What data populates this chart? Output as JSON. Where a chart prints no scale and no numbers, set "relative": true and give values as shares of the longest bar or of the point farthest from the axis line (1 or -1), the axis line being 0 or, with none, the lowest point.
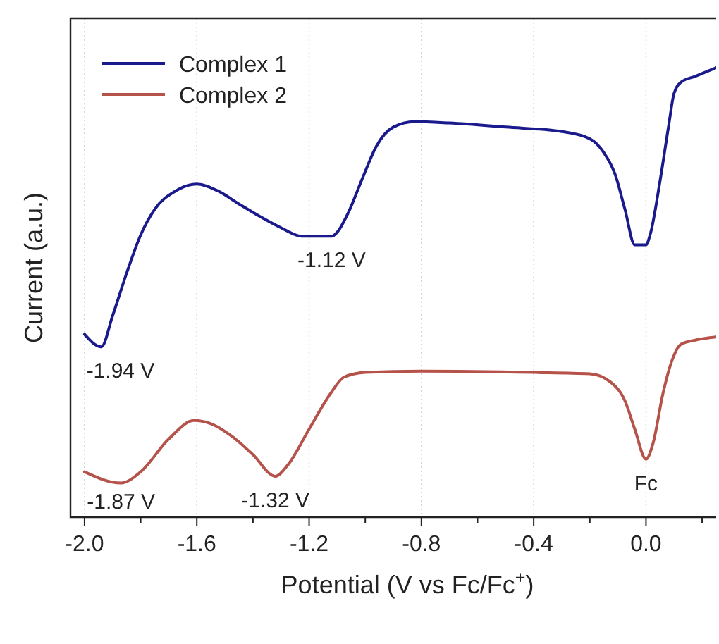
{
  "chart_data": {
    "type": "line",
    "relative": true,
    "xlabel": "Potential (V vs Fc/Fc$^{+}$)",
    "ylabel": "Current (a.u.)",
    "xlim": [
      -2.05,
      0.25
    ],
    "xticks": [
      {
        "value": -2.0,
        "label": "-2.0"
      },
      {
        "value": -1.8,
        "label": null
      },
      {
        "value": -1.6,
        "label": "-1.6"
      },
      {
        "value": -1.4,
        "label": null
      },
      {
        "value": -1.2,
        "label": "-1.2"
      },
      {
        "value": -1.0,
        "label": null
      },
      {
        "value": -0.8,
        "label": "-0.8"
      },
      {
        "value": -0.6,
        "label": null
      },
      {
        "value": -0.4,
        "label": "-0.4"
      },
      {
        "value": -0.2,
        "label": null
      },
      {
        "value": 0.0,
        "label": "0.0"
      },
      {
        "value": 0.2,
        "label": null
      }
    ],
    "grid": "x",
    "legend": "top left",
    "marker": "none",
    "line_style": "solid",
    "series": [
      {
        "name": "Complex 1",
        "color": "#1a1a8c",
        "x": [
          -2.0,
          -1.94,
          -1.9,
          -1.85,
          -1.8,
          -1.75,
          -1.675,
          -1.6,
          -1.525,
          -1.45,
          -1.375,
          -1.3,
          -1.225,
          -1.12,
          -1.1,
          -1.06,
          -1.01,
          -0.96,
          -0.9,
          -0.825,
          -0.7,
          -0.5,
          -0.3,
          -0.2,
          -0.15,
          -0.11,
          -0.075,
          -0.04,
          0.0,
          0.015,
          0.05,
          0.08,
          0.1,
          0.125,
          0.175,
          0.25
        ],
        "values": [
          0.407,
          0.379,
          0.448,
          0.543,
          0.628,
          0.685,
          0.726,
          0.741,
          0.726,
          0.697,
          0.669,
          0.644,
          0.625,
          0.625,
          0.634,
          0.678,
          0.754,
          0.826,
          0.868,
          0.88,
          0.877,
          0.868,
          0.858,
          0.842,
          0.811,
          0.763,
          0.685,
          0.606,
          0.606,
          0.629,
          0.748,
          0.868,
          0.943,
          0.968,
          0.981,
          1.0
        ]
      },
      {
        "name": "Complex 2",
        "color": "#b5524a",
        "x": [
          -2.0,
          -1.87,
          -1.8,
          -1.7,
          -1.61,
          -1.55,
          -1.475,
          -1.4,
          -1.32,
          -1.275,
          -1.2,
          -1.125,
          -1.075,
          -1.0,
          -0.8,
          -0.4,
          -0.2,
          -0.125,
          -0.075,
          -0.04,
          0.0,
          0.025,
          0.06,
          0.09,
          0.125,
          0.175,
          0.25
        ],
        "values": [
          0.101,
          0.076,
          0.101,
          0.174,
          0.215,
          0.208,
          0.18,
          0.139,
          0.091,
          0.117,
          0.196,
          0.274,
          0.312,
          0.322,
          0.325,
          0.322,
          0.319,
          0.3,
          0.259,
          0.196,
          0.129,
          0.164,
          0.274,
          0.344,
          0.385,
          0.394,
          0.401
        ]
      }
    ],
    "annotations": [
      {
        "text": "-1.94 V",
        "x": -1.94,
        "y": 0.379
      },
      {
        "text": "-1.12 V",
        "x": -1.12,
        "y": 0.625
      },
      {
        "text": "-1.87 V",
        "x": -1.87,
        "y": 0.076
      },
      {
        "text": "-1.32 V",
        "x": -1.32,
        "y": 0.091
      },
      {
        "text": "Fc",
        "x": 0.0,
        "y": 0.129
      }
    ]
  }
}
